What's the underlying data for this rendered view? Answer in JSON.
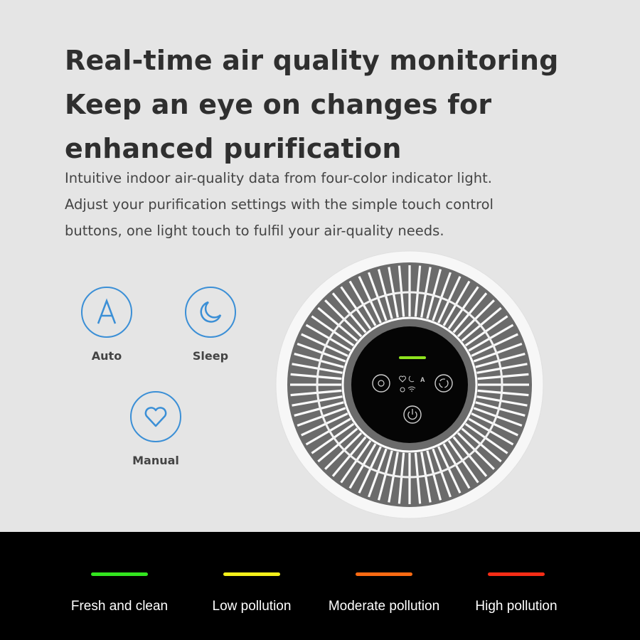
{
  "heading": {
    "lines": [
      "Real-time air quality monitoring",
      "Keep an eye on changes for",
      "enhanced purification"
    ]
  },
  "description": {
    "lines": [
      "Intuitive indoor air-quality data from four-color indicator light.",
      "Adjust your purification settings with the simple touch control",
      "buttons, one light touch to fulfil your air-quality needs."
    ]
  },
  "modes": [
    {
      "label": "Auto",
      "icon": "letter-a-icon"
    },
    {
      "label": "Sleep",
      "icon": "moon-icon"
    },
    {
      "label": "Manual",
      "icon": "heart-icon"
    }
  ],
  "accent_color": "#3b8fd6",
  "control_panel": {
    "indicator_color": "#8ee21e",
    "icons": [
      "brightness-icon",
      "heart-icon",
      "moon-icon",
      "letter-a-icon",
      "lock-icon",
      "wifi-icon",
      "mode-cycle-icon",
      "power-icon"
    ],
    "auto_letter": "A"
  },
  "air_quality_levels": [
    {
      "label": "Fresh and clean",
      "color": "#33e51f"
    },
    {
      "label": "Low pollution",
      "color": "#f4f01a"
    },
    {
      "label": "Moderate pollution",
      "color": "#fb6a12"
    },
    {
      "label": "High pollution",
      "color": "#f72d16"
    }
  ]
}
